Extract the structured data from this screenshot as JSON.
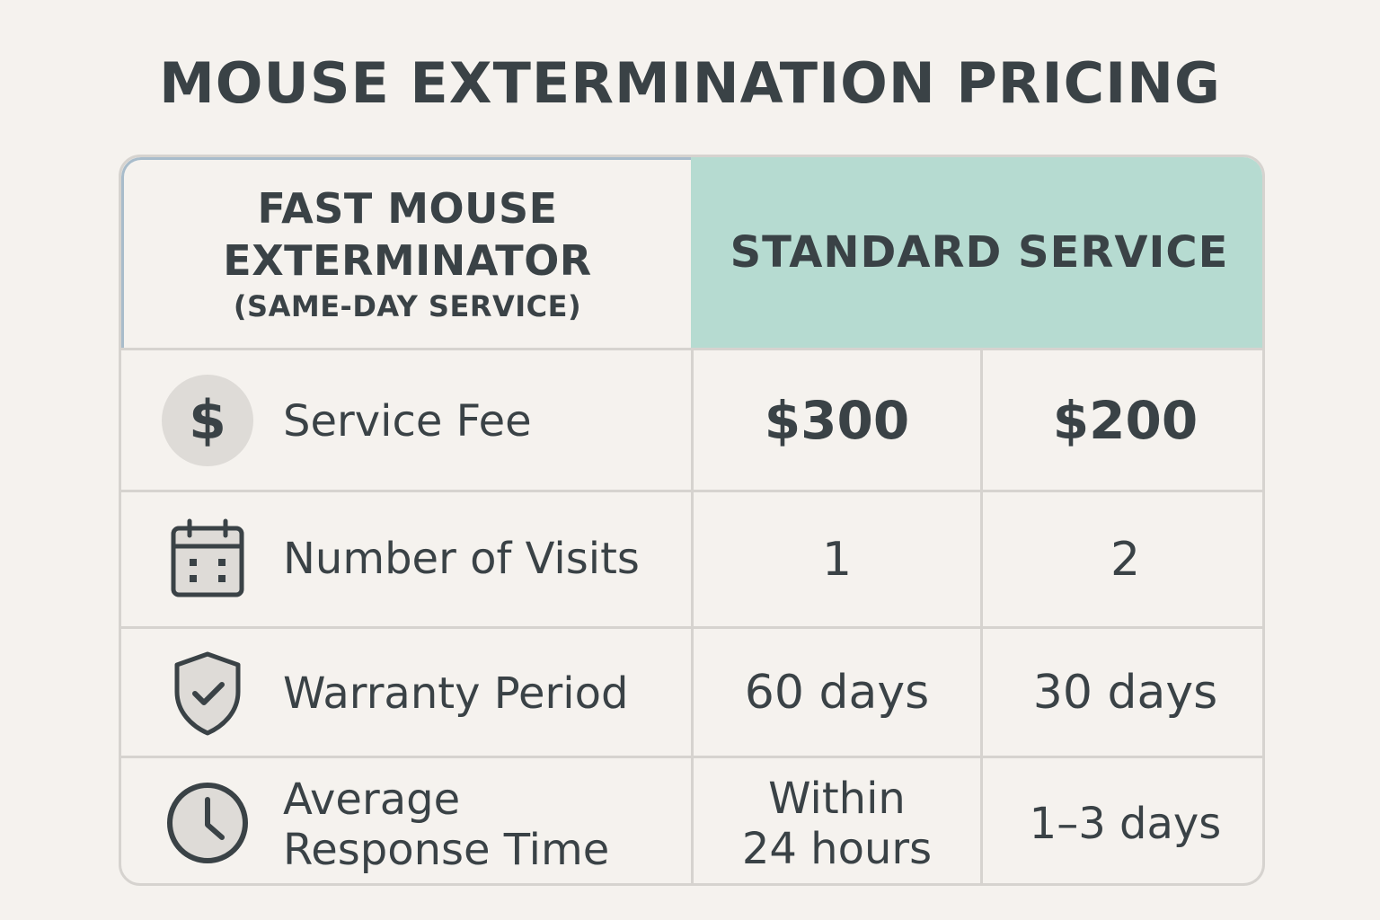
{
  "title": "MOUSE EXTERMINATION PRICING",
  "header": {
    "left_line1": "FAST MOUSE",
    "left_line2": "EXTERMINATOR",
    "left_sub": "(SAME-DAY SERVICE)",
    "right": "STANDARD SERVICE"
  },
  "rows": [
    {
      "icon": "dollar-icon",
      "icon_glyph": "$",
      "label": "Service Fee",
      "fast": "$300",
      "standard": "$200"
    },
    {
      "icon": "calendar-icon",
      "label": "Number of Visits",
      "fast": "1",
      "standard": "2"
    },
    {
      "icon": "shield-check-icon",
      "label": "Warranty Period",
      "fast": "60 days",
      "standard": "30 days"
    },
    {
      "icon": "clock-icon",
      "label_line1": "Average",
      "label_line2": "Response Time",
      "fast_line1": "Within",
      "fast_line2": "24 hours",
      "standard": "1–3 days"
    }
  ],
  "colors": {
    "background": "#f5f2ee",
    "header_accent": "#b6dbd1",
    "text": "#3a4246",
    "border": "#d6d3cf"
  }
}
